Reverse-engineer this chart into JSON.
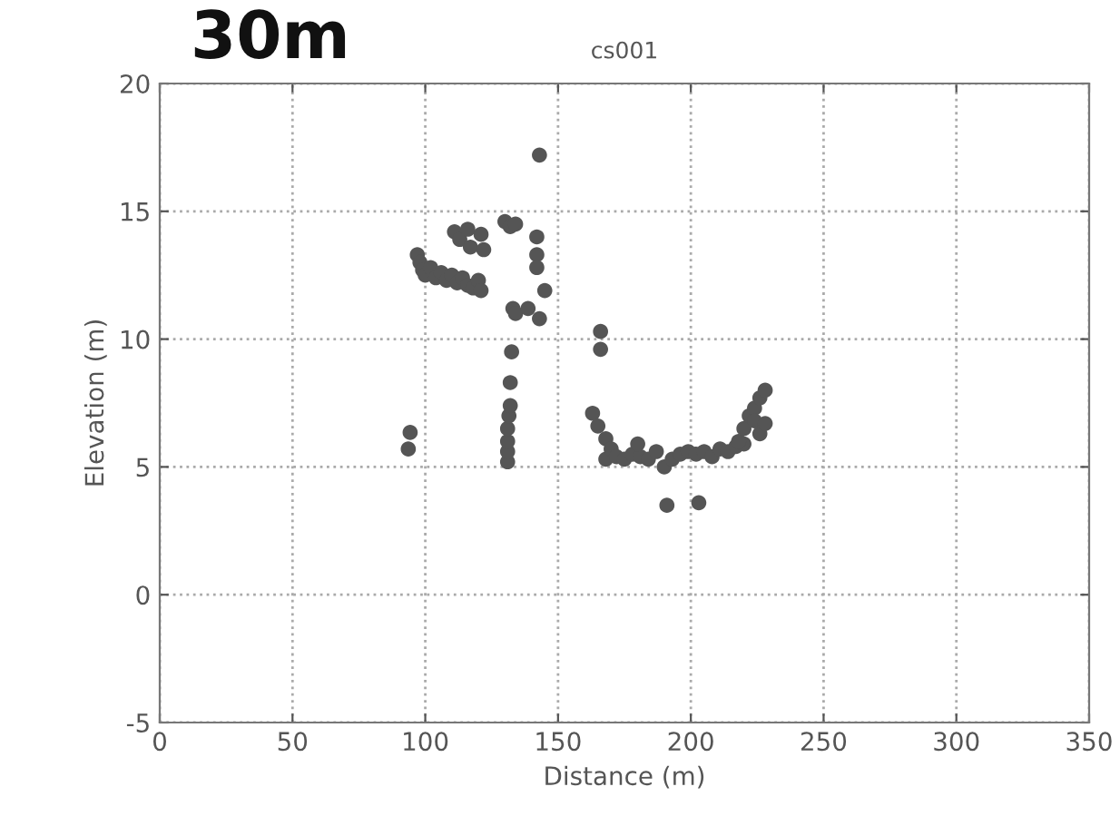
{
  "chart_data": {
    "type": "scatter",
    "title": "cs001",
    "xlabel": "Distance (m)",
    "ylabel": "Elevation (m)",
    "annotations": [
      "30m"
    ],
    "xlim": [
      0,
      350
    ],
    "xticks": [
      0,
      50,
      100,
      150,
      200,
      250,
      300,
      350
    ],
    "ylim": [
      -5,
      20
    ],
    "yticks": [
      -5,
      0,
      5,
      10,
      15,
      20
    ],
    "grid": true,
    "marker": "circle",
    "series": [
      {
        "color": "#555555",
        "x": [
          94.3,
          93.6,
          97,
          98,
          99,
          100,
          102,
          104,
          106,
          108,
          110,
          112,
          114,
          116,
          118,
          120,
          121,
          111,
          113,
          116,
          117,
          121,
          122,
          130,
          132,
          134,
          131,
          131,
          131,
          131,
          131.5,
          132,
          132,
          132.5,
          133,
          134,
          138.7,
          142,
          142,
          142,
          143,
          145,
          143,
          166,
          166,
          163,
          165,
          168,
          168,
          170,
          172,
          175,
          178,
          181,
          184,
          187,
          190,
          193,
          196,
          199,
          202,
          205,
          208,
          211,
          214,
          217,
          220,
          180,
          191,
          203,
          218,
          220,
          222,
          224,
          226,
          228,
          224,
          226,
          228
        ],
        "values": [
          6.35,
          5.7,
          13.3,
          13,
          12.7,
          12.5,
          12.8,
          12.4,
          12.6,
          12.3,
          12.5,
          12.2,
          12.4,
          12.1,
          12.0,
          12.3,
          11.9,
          14.2,
          13.9,
          14.3,
          13.6,
          14.1,
          13.5,
          14.6,
          14.4,
          14.5,
          5.2,
          5.6,
          6.0,
          6.5,
          7.0,
          7.4,
          8.3,
          9.5,
          11.2,
          11.0,
          11.2,
          14.0,
          13.3,
          12.8,
          17.2,
          11.9,
          10.8,
          10.3,
          9.6,
          7.1,
          6.6,
          6.1,
          5.3,
          5.7,
          5.4,
          5.3,
          5.5,
          5.4,
          5.3,
          5.6,
          5.0,
          5.3,
          5.5,
          5.6,
          5.5,
          5.6,
          5.4,
          5.7,
          5.6,
          5.8,
          5.9,
          5.9,
          3.5,
          3.6,
          6.0,
          6.5,
          7.0,
          7.3,
          7.7,
          8.0,
          6.8,
          6.3,
          6.7
        ]
      }
    ]
  }
}
